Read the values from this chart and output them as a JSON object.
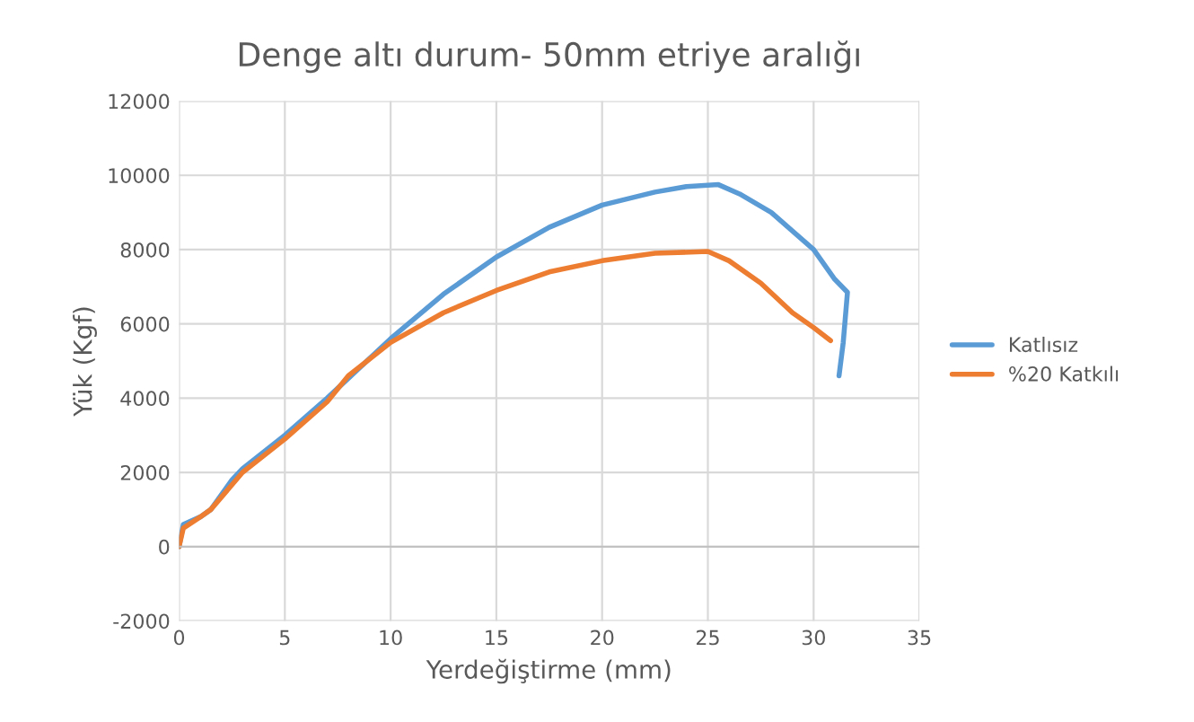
{
  "chart_data": {
    "type": "line",
    "title": "Denge altı durum- 50mm etriye aralığı",
    "xlabel": "Yerdeğiştirme (mm)",
    "ylabel": "Yük (Kgf)",
    "xlim": [
      0,
      35
    ],
    "xticks": [
      0,
      5,
      10,
      15,
      20,
      25,
      30,
      35
    ],
    "ylim": [
      -2000,
      12000
    ],
    "yticks": [
      -2000,
      0,
      2000,
      4000,
      6000,
      8000,
      10000,
      12000
    ],
    "grid": true,
    "legend": "right",
    "series": [
      {
        "name": "Katlısız",
        "color": "#5b9bd5",
        "x": [
          0,
          0.2,
          1,
          1.5,
          2.5,
          3,
          5,
          7,
          10,
          12.5,
          15,
          17.5,
          20,
          22.5,
          24,
          25.5,
          26.5,
          28,
          30,
          31,
          31.6,
          31.4,
          31.2
        ],
        "values": [
          0,
          600,
          800,
          1000,
          1800,
          2100,
          3000,
          4000,
          5600,
          6800,
          7800,
          8600,
          9200,
          9550,
          9700,
          9750,
          9500,
          9000,
          8000,
          7200,
          6850,
          5500,
          4600
        ]
      },
      {
        "name": "%20 Katkılı",
        "color": "#ed7d31",
        "x": [
          0,
          0.2,
          1,
          1.5,
          3,
          5,
          7,
          8,
          10,
          12.5,
          15,
          17.5,
          20,
          22.5,
          25,
          26,
          27.5,
          29,
          30,
          30.8
        ],
        "values": [
          0,
          500,
          800,
          1000,
          2000,
          2900,
          3900,
          4600,
          5500,
          6300,
          6900,
          7400,
          7700,
          7900,
          7950,
          7700,
          7100,
          6300,
          5900,
          5550
        ]
      }
    ]
  }
}
